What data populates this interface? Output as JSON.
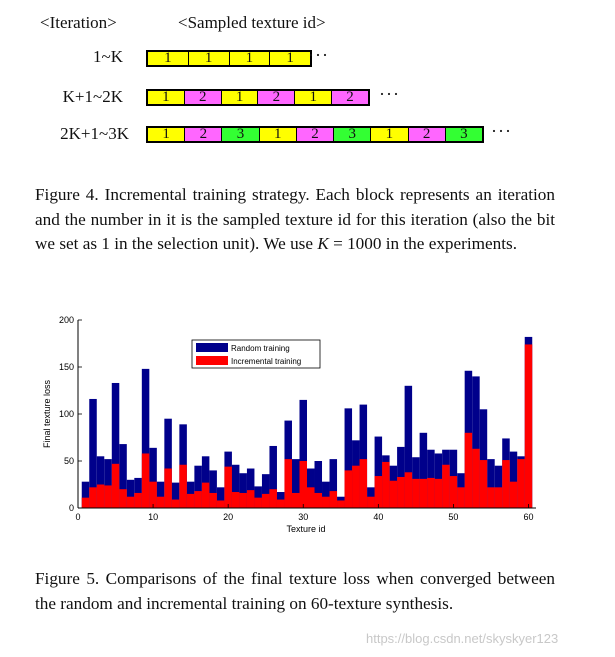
{
  "figure4": {
    "header_iteration": "<Iteration>",
    "header_sampled": "<Sampled texture id>",
    "rows": [
      {
        "label": "1~K",
        "blocks": [
          "1",
          "1",
          "1",
          "1"
        ],
        "dots": "···"
      },
      {
        "label": "K+1~2K",
        "blocks": [
          "1",
          "2",
          "1",
          "2",
          "1",
          "2"
        ],
        "dots": "···"
      },
      {
        "label": "2K+1~3K",
        "blocks": [
          "1",
          "2",
          "3",
          "1",
          "2",
          "3",
          "1",
          "2",
          "3"
        ],
        "dots": "···"
      }
    ],
    "block_colors": {
      "1": "#ffff00",
      "2": "#ff66ff",
      "3": "#33ff33"
    },
    "caption_part1": "Figure 4. Incremental training strategy. Each block represents an iteration and the number in it is the sampled texture id for this iteration (also the bit we set as 1 in the selection unit). We use ",
    "caption_k": "K",
    "caption_part2": " = 1000 in the experiments."
  },
  "chart_data": {
    "type": "bar",
    "title": "",
    "xlabel": "Texture id",
    "ylabel": "Final texture loss",
    "xlim": [
      0,
      61
    ],
    "ylim": [
      0,
      200
    ],
    "xticks": [
      0,
      10,
      20,
      30,
      40,
      50,
      60
    ],
    "yticks": [
      0,
      50,
      100,
      150,
      200
    ],
    "grid": false,
    "legend_position": "top-center",
    "x": [
      1,
      2,
      3,
      4,
      5,
      6,
      7,
      8,
      9,
      10,
      11,
      12,
      13,
      14,
      15,
      16,
      17,
      18,
      19,
      20,
      21,
      22,
      23,
      24,
      25,
      26,
      27,
      28,
      29,
      30,
      31,
      32,
      33,
      34,
      35,
      36,
      37,
      38,
      39,
      40,
      41,
      42,
      43,
      44,
      45,
      46,
      47,
      48,
      49,
      50,
      51,
      52,
      53,
      54,
      55,
      56,
      57,
      58,
      59,
      60
    ],
    "series": [
      {
        "name": "Random training",
        "color": "#00008b",
        "values": [
          28,
          116,
          55,
          52,
          133,
          68,
          30,
          32,
          148,
          64,
          28,
          95,
          27,
          89,
          28,
          45,
          55,
          40,
          22,
          60,
          46,
          37,
          42,
          23,
          36,
          66,
          17,
          93,
          52,
          115,
          42,
          50,
          28,
          52,
          12,
          106,
          72,
          110,
          22,
          76,
          56,
          45,
          65,
          130,
          54,
          80,
          62,
          58,
          62,
          62,
          37,
          146,
          140,
          105,
          52,
          45,
          74,
          60,
          55,
          182
        ],
        "values_are_totals": true
      },
      {
        "name": "Incremental training",
        "color": "#ff0000",
        "values": [
          11,
          22,
          25,
          24,
          47,
          20,
          12,
          16,
          58,
          28,
          12,
          42,
          9,
          46,
          15,
          18,
          27,
          16,
          8,
          44,
          17,
          16,
          19,
          11,
          15,
          20,
          9,
          52,
          16,
          50,
          22,
          16,
          12,
          18,
          8,
          40,
          45,
          52,
          12,
          34,
          49,
          29,
          33,
          38,
          31,
          31,
          32,
          31,
          46,
          34,
          22,
          80,
          63,
          51,
          22,
          22,
          51,
          28,
          52,
          174
        ]
      }
    ]
  },
  "figure5": {
    "caption": "Figure 5. Comparisons of the final texture loss when converged between the random and incremental training on 60-texture synthesis."
  },
  "watermark": "https://blog.csdn.net/skyskyer123"
}
